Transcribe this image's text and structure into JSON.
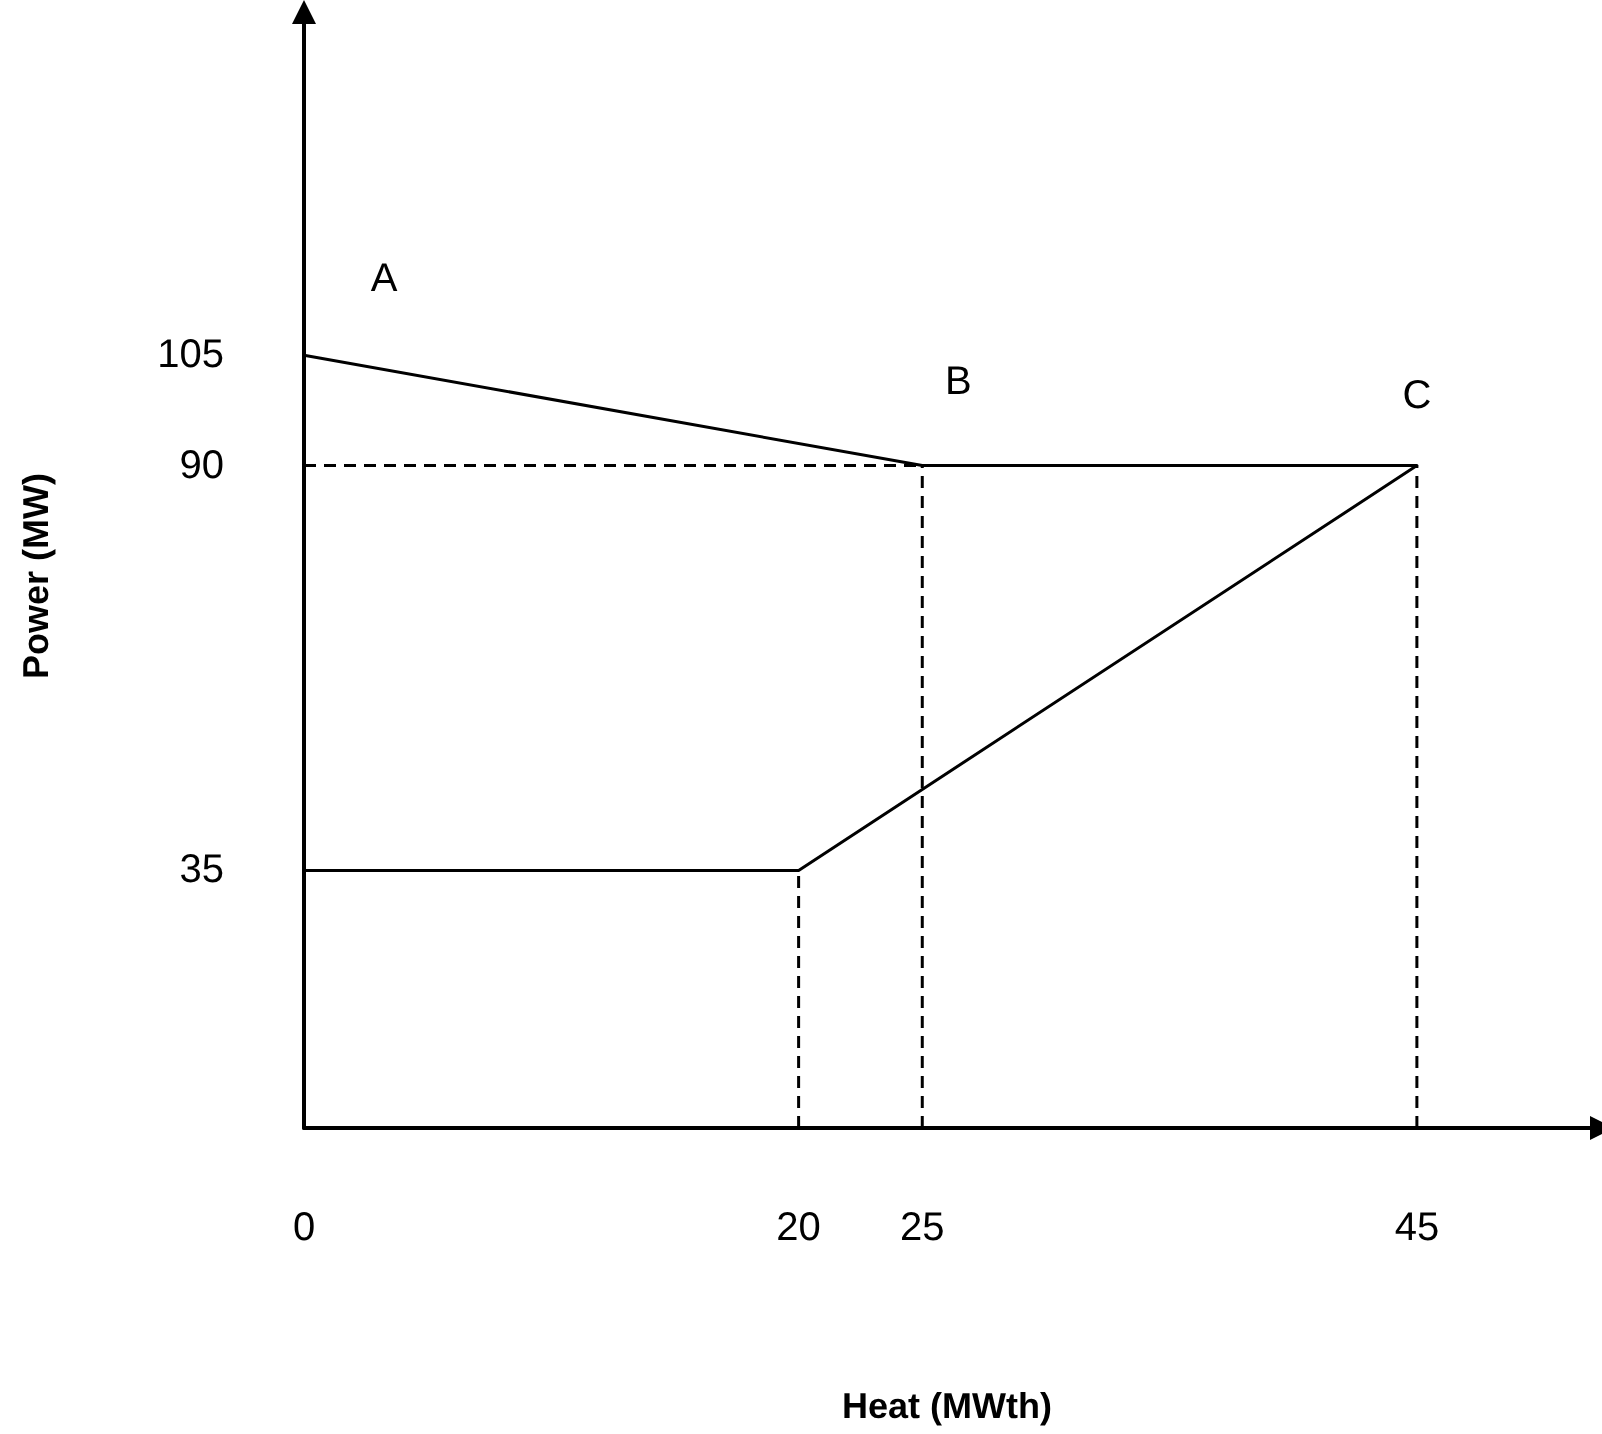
{
  "chart_data": {
    "type": "line",
    "xlabel": "Heat (MWth)",
    "ylabel": "Power (MW)",
    "xlim": [
      0,
      52
    ],
    "xticks": [
      0,
      20,
      25,
      45
    ],
    "ylim": [
      0,
      150
    ],
    "yticks": [
      35,
      90,
      105
    ],
    "grid": false,
    "marker": "none",
    "series": [
      {
        "color": "#000000",
        "x": [
          0,
          25,
          45,
          20,
          0
        ],
        "values": [
          105,
          90,
          90,
          35,
          35
        ],
        "line_style": "solid"
      },
      {
        "color": "#000000",
        "x": [
          0,
          25
        ],
        "values": [
          90,
          90
        ],
        "line_style": "dashed"
      },
      {
        "color": "#000000",
        "x": [
          25,
          25
        ],
        "values": [
          0,
          90
        ],
        "line_style": "dashed"
      },
      {
        "color": "#000000",
        "x": [
          45,
          45
        ],
        "values": [
          0,
          90
        ],
        "line_style": "dashed"
      },
      {
        "color": "#000000",
        "x": [
          20,
          20
        ],
        "values": [
          0,
          35
        ],
        "line_style": "dashed"
      }
    ],
    "annotations": [
      {
        "text": "A",
        "x": 0,
        "y": 105
      },
      {
        "text": "B",
        "x": 25,
        "y": 90
      },
      {
        "text": "C",
        "x": 45,
        "y": 90
      }
    ]
  }
}
